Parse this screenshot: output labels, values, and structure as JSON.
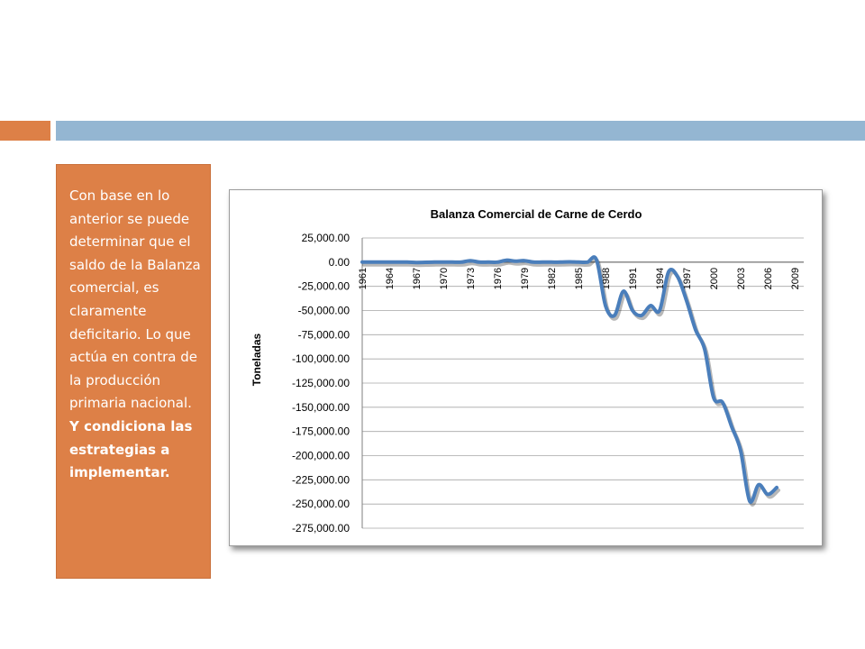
{
  "slide": {
    "accent_orange": "#dd8047",
    "accent_blue": "#94b6d2",
    "text_plain": "Con base en lo anterior se puede determinar que el saldo de la Balanza comercial, es claramente deficitario.  Lo que actúa en contra de la producción primaria nacional.",
    "text_bold": "Y condiciona las estrategias  a implementar."
  },
  "chart_data": {
    "type": "line",
    "title": "Balanza Comercial de Carne de Cerdo",
    "xlabel": "",
    "ylabel": "Toneladas",
    "ylim": [
      -275000,
      25000
    ],
    "xlim": [
      1961,
      2010
    ],
    "y_ticks": [
      25000,
      0,
      -25000,
      -50000,
      -75000,
      -100000,
      -125000,
      -150000,
      -175000,
      -200000,
      -225000,
      -250000,
      -275000
    ],
    "y_tick_labels": [
      "25,000.00",
      "0.00",
      "-25,000.00",
      "-50,000.00",
      "-75,000.00",
      "-100,000.00",
      "-125,000.00",
      "-150,000.00",
      "-175,000.00",
      "-200,000.00",
      "-225,000.00",
      "-250,000.00",
      "-275,000.00"
    ],
    "x_tick_labels": [
      "1961",
      "1964",
      "1967",
      "1970",
      "1973",
      "1976",
      "1979",
      "1982",
      "1985",
      "1988",
      "1991",
      "1994",
      "1997",
      "2000",
      "2003",
      "2006",
      "2009"
    ],
    "grid": true,
    "legend": "none",
    "line_color": "#4a7ebb",
    "series": [
      {
        "x": [
          1961,
          1962,
          1963,
          1964,
          1965,
          1966,
          1967,
          1968,
          1969,
          1970,
          1971,
          1972,
          1973,
          1974,
          1975,
          1976,
          1977,
          1978,
          1979,
          1980,
          1981,
          1982,
          1983,
          1984,
          1985,
          1986,
          1987,
          1988,
          1989,
          1990,
          1991,
          1992,
          1993,
          1994,
          1995,
          1996,
          1997,
          1998,
          1999,
          2000,
          2001,
          2002,
          2003,
          2004,
          2005,
          2006,
          2007
        ],
        "values": [
          0,
          0,
          0,
          0,
          0,
          0,
          -300,
          -200,
          0,
          0,
          0,
          0,
          1500,
          0,
          0,
          0,
          2000,
          1000,
          1500,
          0,
          0,
          0,
          0,
          300,
          0,
          0,
          2500,
          -45000,
          -55000,
          -30000,
          -50000,
          -55000,
          -45000,
          -50000,
          -10000,
          -15000,
          -40000,
          -70000,
          -90000,
          -140000,
          -145000,
          -170000,
          -195000,
          -247000,
          -230000,
          -240000,
          -233000
        ]
      }
    ]
  }
}
